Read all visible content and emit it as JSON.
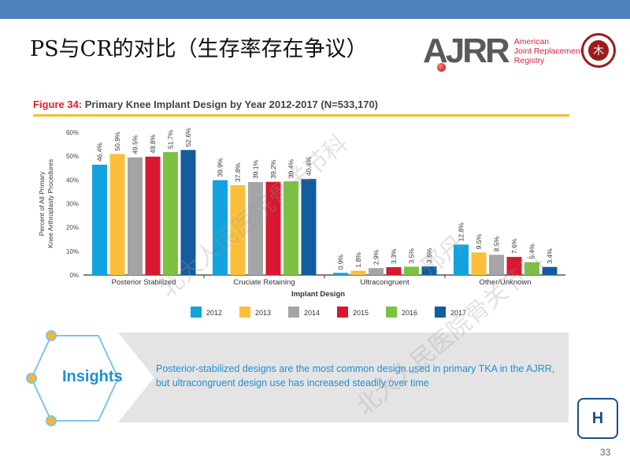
{
  "slide": {
    "title": "PS与CR的对比（生存率存在争议）",
    "page_number": "33",
    "header_color": "#4f81bd"
  },
  "logos": {
    "ajrr_mark": "AJRR",
    "ajrr_name_lines": [
      "American",
      "Joint Replacement",
      "Registry"
    ],
    "pku_seal": "PEKING UNIVERSITY 1898",
    "hospital_logo": "H"
  },
  "watermark": {
    "lines": [
      "北大人民医院骨关节科",
      "邢丹"
    ]
  },
  "figure": {
    "label": "Figure 34:",
    "title": "Primary Knee Implant Design by Year 2012-2017 (N=533,170)"
  },
  "chart_data": {
    "type": "bar",
    "title": "Primary Knee Implant Design by Year 2012-2017 (N=533,170)",
    "xlabel": "Implant Design",
    "ylabel": "Percent of All Primary Knee Arthroplasty Procedures",
    "ylim": [
      0,
      60
    ],
    "yticks": [
      "0%",
      "10%",
      "20%",
      "30%",
      "40%",
      "50%",
      "60%"
    ],
    "categories": [
      "Posterior Stabilized",
      "Cruciate Retaining",
      "Ultracongruent",
      "Other/Unknown"
    ],
    "legend_position": "bottom",
    "series": [
      {
        "name": "2012",
        "color": "#12a3df",
        "values": [
          46.4,
          39.9,
          0.9,
          12.8
        ],
        "labels": [
          "46.4%",
          "39.9%",
          "0.9%",
          "12.8%"
        ]
      },
      {
        "name": "2013",
        "color": "#fbbf3c",
        "values": [
          50.9,
          37.8,
          1.8,
          9.5
        ],
        "labels": [
          "50.9%",
          "37.8%",
          "1.8%",
          "9.5%"
        ]
      },
      {
        "name": "2014",
        "color": "#a5a5a8",
        "values": [
          49.5,
          39.1,
          2.9,
          8.5
        ],
        "labels": [
          "49.5%",
          "39.1%",
          "2.9%",
          "8.5%"
        ]
      },
      {
        "name": "2015",
        "color": "#d7182f",
        "values": [
          49.8,
          39.2,
          3.3,
          7.6
        ],
        "labels": [
          "49.8%",
          "39.2%",
          "3.3%",
          "7.6%"
        ]
      },
      {
        "name": "2016",
        "color": "#7cc242",
        "values": [
          51.7,
          39.4,
          3.5,
          5.4
        ],
        "labels": [
          "51.7%",
          "39.4%",
          "3.5%",
          "5.4%"
        ]
      },
      {
        "name": "2017",
        "color": "#135c9e",
        "values": [
          52.6,
          40.4,
          3.6,
          3.4
        ],
        "labels": [
          "52.6%",
          "40.4%",
          "3.6%",
          "3.4%"
        ]
      }
    ]
  },
  "insights": {
    "label": "Insights",
    "text": "Posterior-stabilized designs are the most common design used in primary TKA in the AJRR, but ultracongruent design use has increased steadily over time"
  }
}
